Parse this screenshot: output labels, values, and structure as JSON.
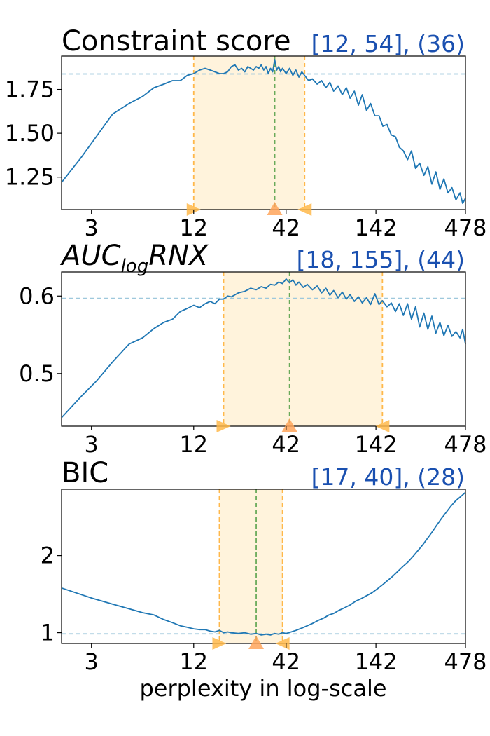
{
  "figure": {
    "xlabel": "perplexity in log-scale"
  },
  "chart_data": [
    {
      "type": "line",
      "title": "Constraint score",
      "annotation": "[12, 54], (36)",
      "x_scale": "log",
      "xlim": [
        2,
        478
      ],
      "x_ticks": [
        3,
        12,
        42,
        142,
        478
      ],
      "x_tick_labels": [
        "3",
        "12",
        "42",
        "142",
        "478"
      ],
      "ylim": [
        1.065,
        1.94
      ],
      "y_ticks": [
        1.25,
        1.5,
        1.75
      ],
      "y_tick_labels": [
        "1.25",
        "1.50",
        "1.75"
      ],
      "range": [
        12,
        54
      ],
      "best": 36,
      "hline": 1.838,
      "series": [
        {
          "x": [
            2,
            2.6,
            3.2,
            4,
            5,
            6,
            7,
            8,
            9,
            10,
            11,
            12,
            13,
            14,
            15,
            16,
            17,
            18,
            19,
            20,
            21,
            22,
            23,
            24,
            25,
            26,
            27,
            28,
            29,
            30,
            31,
            32,
            33,
            34,
            35,
            36,
            37,
            38,
            39,
            40,
            42,
            44,
            46,
            48,
            50,
            52,
            54,
            57,
            60,
            64,
            68,
            72,
            76,
            80,
            85,
            90,
            95,
            100,
            106,
            112,
            118,
            125,
            132,
            140,
            148,
            156,
            165,
            175,
            185,
            195,
            206,
            218,
            230,
            243,
            257,
            272,
            287,
            303,
            320,
            338,
            357,
            377,
            398,
            420,
            444,
            460,
            478
          ],
          "y": [
            1.22,
            1.36,
            1.48,
            1.61,
            1.67,
            1.71,
            1.76,
            1.78,
            1.8,
            1.8,
            1.83,
            1.84,
            1.86,
            1.87,
            1.86,
            1.85,
            1.84,
            1.84,
            1.85,
            1.88,
            1.89,
            1.86,
            1.87,
            1.85,
            1.88,
            1.87,
            1.86,
            1.88,
            1.87,
            1.89,
            1.86,
            1.88,
            1.84,
            1.87,
            1.85,
            1.92,
            1.86,
            1.88,
            1.85,
            1.87,
            1.84,
            1.87,
            1.83,
            1.86,
            1.82,
            1.85,
            1.83,
            1.8,
            1.81,
            1.78,
            1.8,
            1.76,
            1.79,
            1.74,
            1.77,
            1.72,
            1.76,
            1.7,
            1.74,
            1.66,
            1.72,
            1.63,
            1.67,
            1.6,
            1.6,
            1.54,
            1.55,
            1.49,
            1.48,
            1.42,
            1.4,
            1.35,
            1.4,
            1.3,
            1.33,
            1.26,
            1.31,
            1.21,
            1.28,
            1.18,
            1.24,
            1.16,
            1.19,
            1.12,
            1.16,
            1.1,
            1.13
          ]
        }
      ]
    },
    {
      "type": "line",
      "title": "AUC_log RNX",
      "title_main": "AUC",
      "title_sub": "log",
      "title_tail": "RNX",
      "annotation": "[18, 155], (44)",
      "x_scale": "log",
      "xlim": [
        2,
        478
      ],
      "x_ticks": [
        3,
        12,
        42,
        142,
        478
      ],
      "x_tick_labels": [
        "3",
        "12",
        "42",
        "142",
        "478"
      ],
      "ylim": [
        0.432,
        0.631
      ],
      "y_ticks": [
        0.5,
        0.6
      ],
      "y_tick_labels": [
        "0.5",
        "0.6"
      ],
      "range": [
        18,
        155
      ],
      "best": 44,
      "hline": 0.597,
      "series": [
        {
          "x": [
            2,
            2.6,
            3.2,
            4,
            5,
            6,
            7,
            8,
            9,
            10,
            11,
            12,
            13,
            14,
            15,
            16,
            17,
            18,
            19,
            20,
            22,
            24,
            26,
            28,
            30,
            32,
            34,
            36,
            38,
            40,
            42,
            44,
            46,
            48,
            50,
            53,
            56,
            60,
            64,
            68,
            72,
            76,
            80,
            85,
            90,
            95,
            100,
            106,
            112,
            118,
            125,
            132,
            140,
            148,
            155,
            165,
            175,
            185,
            195,
            206,
            218,
            230,
            243,
            257,
            272,
            287,
            303,
            320,
            338,
            357,
            377,
            398,
            420,
            444,
            460,
            478
          ],
          "y": [
            0.443,
            0.47,
            0.49,
            0.515,
            0.538,
            0.546,
            0.558,
            0.566,
            0.57,
            0.58,
            0.584,
            0.588,
            0.585,
            0.59,
            0.593,
            0.59,
            0.596,
            0.596,
            0.6,
            0.599,
            0.604,
            0.606,
            0.61,
            0.608,
            0.612,
            0.61,
            0.615,
            0.614,
            0.618,
            0.616,
            0.622,
            0.617,
            0.621,
            0.614,
            0.618,
            0.611,
            0.615,
            0.608,
            0.613,
            0.604,
            0.61,
            0.601,
            0.607,
            0.598,
            0.605,
            0.596,
            0.602,
            0.593,
            0.599,
            0.591,
            0.598,
            0.589,
            0.603,
            0.589,
            0.594,
            0.586,
            0.591,
            0.58,
            0.59,
            0.575,
            0.59,
            0.57,
            0.586,
            0.56,
            0.578,
            0.557,
            0.574,
            0.552,
            0.566,
            0.549,
            0.562,
            0.548,
            0.554,
            0.546,
            0.557,
            0.538
          ]
        }
      ]
    },
    {
      "type": "line",
      "title": "BIC",
      "annotation": "[17, 40], (28)",
      "x_scale": "log",
      "xlim": [
        2,
        478
      ],
      "x_ticks": [
        3,
        12,
        42,
        142,
        478
      ],
      "x_tick_labels": [
        "3",
        "12",
        "42",
        "142",
        "478"
      ],
      "ylim": [
        0.86,
        2.86
      ],
      "y_ticks": [
        1,
        2
      ],
      "y_tick_labels": [
        "1",
        "2"
      ],
      "range": [
        17,
        40
      ],
      "best": 28,
      "hline": 0.985,
      "series": [
        {
          "x": [
            2,
            3,
            4,
            5,
            6,
            7,
            8,
            9,
            10,
            11,
            12,
            13,
            14,
            15,
            16,
            17,
            18,
            19,
            20,
            22,
            24,
            26,
            28,
            30,
            32,
            34,
            36,
            38,
            40,
            42,
            45,
            48,
            52,
            56,
            60,
            65,
            70,
            75,
            80,
            86,
            92,
            100,
            108,
            116,
            125,
            135,
            145,
            155,
            165,
            178,
            190,
            205,
            220,
            235,
            250,
            268,
            285,
            305,
            325,
            345,
            368,
            392,
            418,
            445,
            478
          ],
          "y": [
            1.58,
            1.45,
            1.37,
            1.31,
            1.26,
            1.23,
            1.17,
            1.13,
            1.09,
            1.07,
            1.05,
            1.04,
            1.04,
            1.02,
            1.01,
            1.03,
            1.0,
            1.01,
            1.0,
            0.99,
            1.0,
            0.98,
            0.99,
            0.97,
            0.98,
            0.97,
            0.99,
            0.98,
            1.0,
            0.99,
            1.01,
            1.03,
            1.06,
            1.09,
            1.12,
            1.16,
            1.19,
            1.23,
            1.25,
            1.29,
            1.32,
            1.36,
            1.41,
            1.44,
            1.48,
            1.52,
            1.57,
            1.62,
            1.67,
            1.73,
            1.79,
            1.86,
            1.92,
            1.99,
            2.06,
            2.14,
            2.22,
            2.31,
            2.4,
            2.48,
            2.56,
            2.64,
            2.71,
            2.76,
            2.82
          ]
        }
      ]
    }
  ]
}
